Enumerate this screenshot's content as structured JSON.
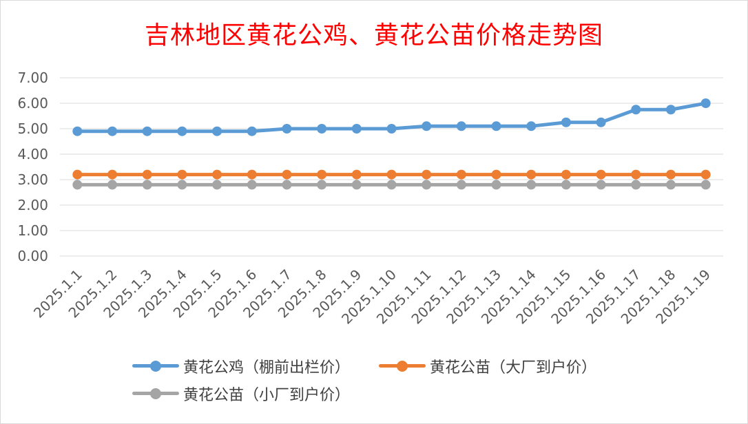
{
  "chart_data": {
    "type": "line",
    "title": "吉林地区黄花公鸡、黄花公苗价格走势图",
    "xlabel": "",
    "ylabel": "",
    "ylim": [
      0,
      7
    ],
    "y_ticks": [
      "0.00",
      "1.00",
      "2.00",
      "3.00",
      "4.00",
      "5.00",
      "6.00",
      "7.00"
    ],
    "grid": true,
    "legend_position": "bottom",
    "categories": [
      "2025.1.1",
      "2025.1.2",
      "2025.1.3",
      "2025.1.4",
      "2025.1.5",
      "2025.1.6",
      "2025.1.7",
      "2025.1.8",
      "2025.1.9",
      "2025.1.10",
      "2025.1.11",
      "2025.1.12",
      "2025.1.13",
      "2025.1.14",
      "2025.1.15",
      "2025.1.16",
      "2025.1.17",
      "2025.1.18",
      "2025.1.19"
    ],
    "series": [
      {
        "name": "黄花公鸡（棚前出栏价）",
        "color": "#5b9bd5",
        "values": [
          4.9,
          4.9,
          4.9,
          4.9,
          4.9,
          4.9,
          5.0,
          5.0,
          5.0,
          5.0,
          5.1,
          5.1,
          5.1,
          5.1,
          5.25,
          5.25,
          5.75,
          5.75,
          6.0
        ]
      },
      {
        "name": "黄花公苗（大厂到户价）",
        "color": "#ed7d31",
        "values": [
          3.2,
          3.2,
          3.2,
          3.2,
          3.2,
          3.2,
          3.2,
          3.2,
          3.2,
          3.2,
          3.2,
          3.2,
          3.2,
          3.2,
          3.2,
          3.2,
          3.2,
          3.2,
          3.2
        ]
      },
      {
        "name": "黄花公苗（小厂到户价）",
        "color": "#a5a5a5",
        "values": [
          2.8,
          2.8,
          2.8,
          2.8,
          2.8,
          2.8,
          2.8,
          2.8,
          2.8,
          2.8,
          2.8,
          2.8,
          2.8,
          2.8,
          2.8,
          2.8,
          2.8,
          2.8,
          2.8
        ]
      }
    ]
  }
}
